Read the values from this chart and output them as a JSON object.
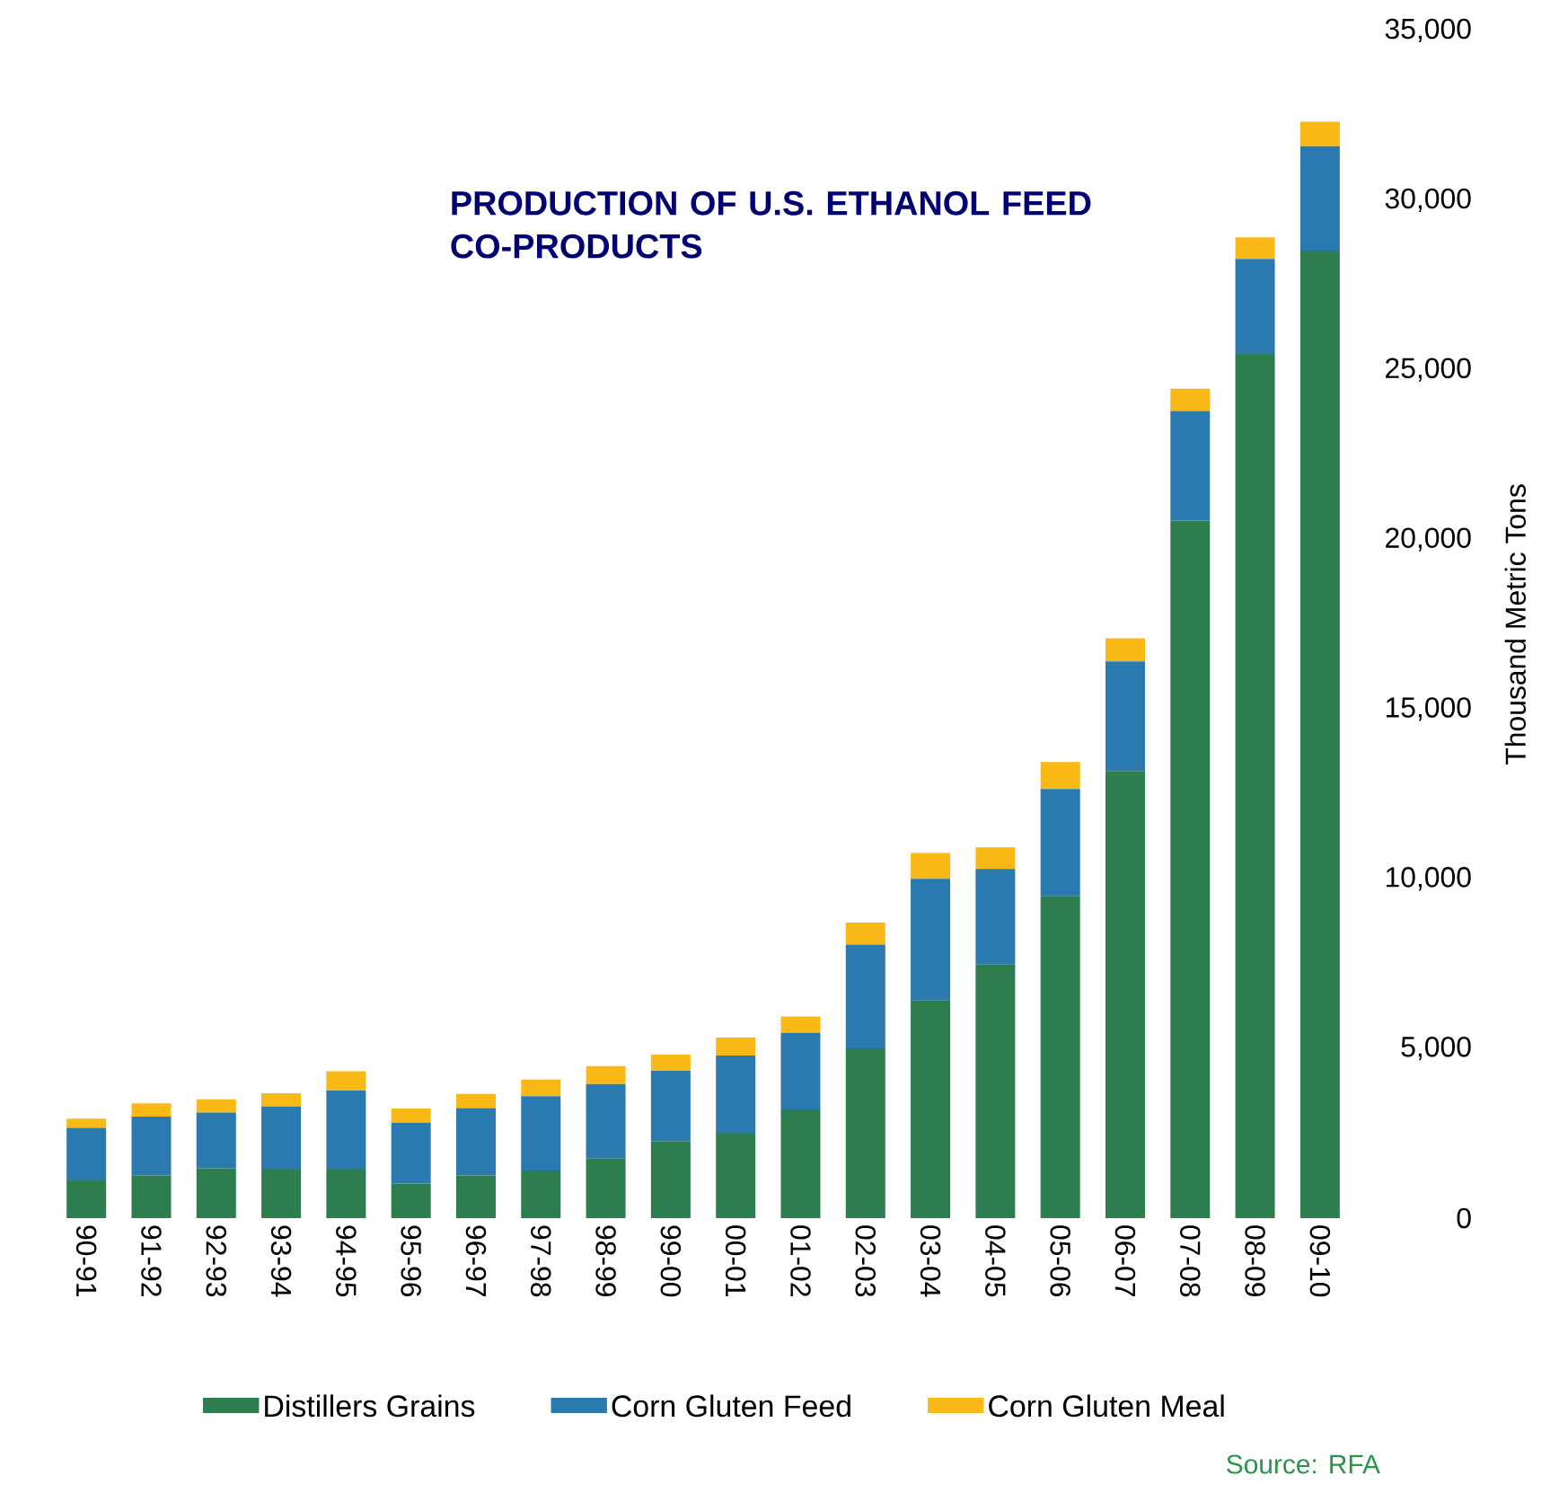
{
  "chart_data": {
    "type": "bar",
    "stacked": true,
    "title": "PRODUCTION OF U.S. ETHANOL FEED CO-PRODUCTS",
    "ylabel": "Thousand Metric Tons",
    "categories": [
      "90-91",
      "91-92",
      "92-93",
      "93-94",
      "94-95",
      "95-96",
      "96-97",
      "97-98",
      "98-99",
      "99-00",
      "00-01",
      "01-02",
      "02-03",
      "03-04",
      "04-05",
      "05-06",
      "06-07",
      "07-08",
      "08-09",
      "09-10"
    ],
    "series": [
      {
        "name": "Distillers Grains",
        "color": "#2e7d4f",
        "values": [
          1110,
          1260,
          1470,
          1430,
          1430,
          1020,
          1260,
          1400,
          1750,
          2260,
          2490,
          3200,
          5000,
          6410,
          7470,
          9500,
          13180,
          20560,
          25470,
          28510
        ]
      },
      {
        "name": "Corn Gluten Feed",
        "color": "#2a7ab0",
        "values": [
          1550,
          1730,
          1640,
          1860,
          2330,
          1790,
          1980,
          2190,
          2200,
          2080,
          2300,
          2260,
          3060,
          3590,
          2820,
          3150,
          3230,
          3230,
          2800,
          3080
        ]
      },
      {
        "name": "Corn Gluten Meal",
        "color": "#fbb917",
        "values": [
          270,
          390,
          390,
          390,
          570,
          420,
          420,
          490,
          530,
          480,
          530,
          480,
          650,
          760,
          640,
          790,
          680,
          650,
          630,
          720
        ]
      }
    ],
    "ylim": [
      0,
      35000
    ],
    "yticks": [
      0,
      {
        "value": 5000,
        "label": "5,000"
      },
      {
        "value": 10000,
        "label": "10,000"
      },
      {
        "value": 15000,
        "label": "15,000"
      },
      {
        "value": 20000,
        "label": "20,000"
      },
      {
        "value": 25000,
        "label": "25,000"
      },
      {
        "value": 30000,
        "label": "30,000"
      },
      {
        "value": 35000,
        "label": "35,000"
      }
    ],
    "legend": "bottom",
    "grid": false,
    "annotations": [
      "Source: RFA"
    ]
  }
}
